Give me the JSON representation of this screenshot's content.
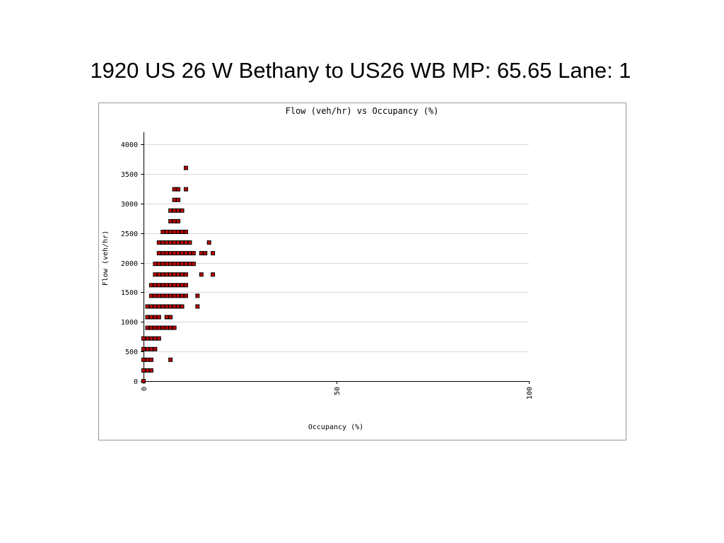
{
  "title": "1920  US 26 W  Bethany to US26 WB  MP: 65.65 Lane: 1",
  "chart_data": {
    "type": "scatter",
    "title": "Flow (veh/hr) vs Occupancy (%)",
    "x_label": "Occupancy (%)",
    "y_label": "Flow (veh/hr)",
    "xlim": [
      0,
      100
    ],
    "xticks": [
      0,
      50,
      100
    ],
    "ylim": [
      0,
      4000
    ],
    "yticks": [
      0,
      500,
      1000,
      1500,
      2000,
      2500,
      3000,
      3500,
      4000
    ],
    "grid": true,
    "color": "#c00000",
    "x": [
      0,
      0,
      1,
      2,
      0,
      1,
      2,
      7,
      0,
      1,
      2,
      3,
      0,
      1,
      2,
      3,
      4,
      1,
      2,
      3,
      4,
      5,
      6,
      7,
      8,
      1,
      2,
      3,
      4,
      6,
      7,
      1,
      2,
      3,
      4,
      5,
      6,
      7,
      8,
      9,
      10,
      14,
      2,
      3,
      4,
      5,
      6,
      7,
      8,
      9,
      10,
      11,
      14,
      2,
      3,
      4,
      5,
      6,
      7,
      8,
      9,
      10,
      11,
      3,
      4,
      5,
      6,
      7,
      8,
      9,
      10,
      11,
      15,
      18,
      3,
      4,
      5,
      6,
      7,
      8,
      9,
      10,
      11,
      12,
      13,
      4,
      5,
      6,
      7,
      8,
      9,
      10,
      11,
      12,
      13,
      15,
      16,
      18,
      4,
      5,
      6,
      7,
      8,
      9,
      10,
      11,
      12,
      17,
      5,
      6,
      7,
      8,
      9,
      10,
      11,
      7,
      8,
      9,
      7,
      8,
      9,
      10,
      8,
      9,
      8,
      9,
      11,
      11
    ],
    "y": [
      0,
      180,
      180,
      180,
      360,
      360,
      360,
      360,
      540,
      540,
      540,
      540,
      720,
      720,
      720,
      720,
      720,
      900,
      900,
      900,
      900,
      900,
      900,
      900,
      900,
      1080,
      1080,
      1080,
      1080,
      1080,
      1080,
      1260,
      1260,
      1260,
      1260,
      1260,
      1260,
      1260,
      1260,
      1260,
      1260,
      1260,
      1440,
      1440,
      1440,
      1440,
      1440,
      1440,
      1440,
      1440,
      1440,
      1440,
      1440,
      1620,
      1620,
      1620,
      1620,
      1620,
      1620,
      1620,
      1620,
      1620,
      1620,
      1800,
      1800,
      1800,
      1800,
      1800,
      1800,
      1800,
      1800,
      1800,
      1800,
      1800,
      1980,
      1980,
      1980,
      1980,
      1980,
      1980,
      1980,
      1980,
      1980,
      1980,
      1980,
      2160,
      2160,
      2160,
      2160,
      2160,
      2160,
      2160,
      2160,
      2160,
      2160,
      2160,
      2160,
      2160,
      2340,
      2340,
      2340,
      2340,
      2340,
      2340,
      2340,
      2340,
      2340,
      2340,
      2520,
      2520,
      2520,
      2520,
      2520,
      2520,
      2520,
      2700,
      2700,
      2700,
      2880,
      2880,
      2880,
      2880,
      3060,
      3060,
      3240,
      3240,
      3240,
      3600
    ]
  }
}
